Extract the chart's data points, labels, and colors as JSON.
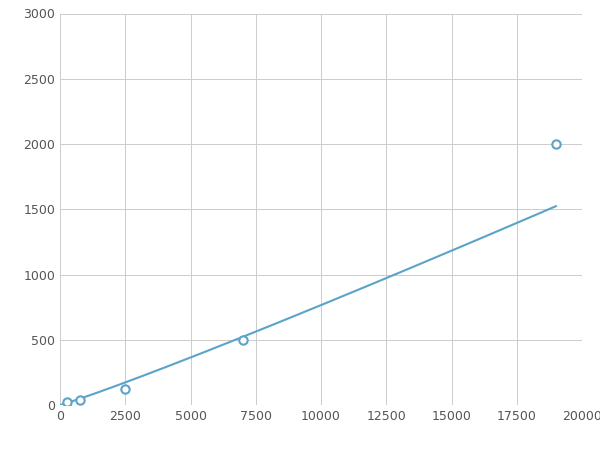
{
  "x": [
    250,
    750,
    2500,
    7000,
    19000
  ],
  "y": [
    20,
    40,
    120,
    500,
    2000
  ],
  "line_color": "#5BA3C9",
  "marker_color": "#5BA3C9",
  "marker_size": 6,
  "line_width": 1.5,
  "xlim": [
    0,
    20000
  ],
  "ylim": [
    0,
    3000
  ],
  "xticks": [
    0,
    2500,
    5000,
    7500,
    10000,
    12500,
    15000,
    17500,
    20000
  ],
  "yticks": [
    0,
    500,
    1000,
    1500,
    2000,
    2500,
    3000
  ],
  "grid_color": "#CCCCCC",
  "background_color": "#FFFFFF",
  "figsize": [
    6.0,
    4.5
  ],
  "dpi": 100
}
